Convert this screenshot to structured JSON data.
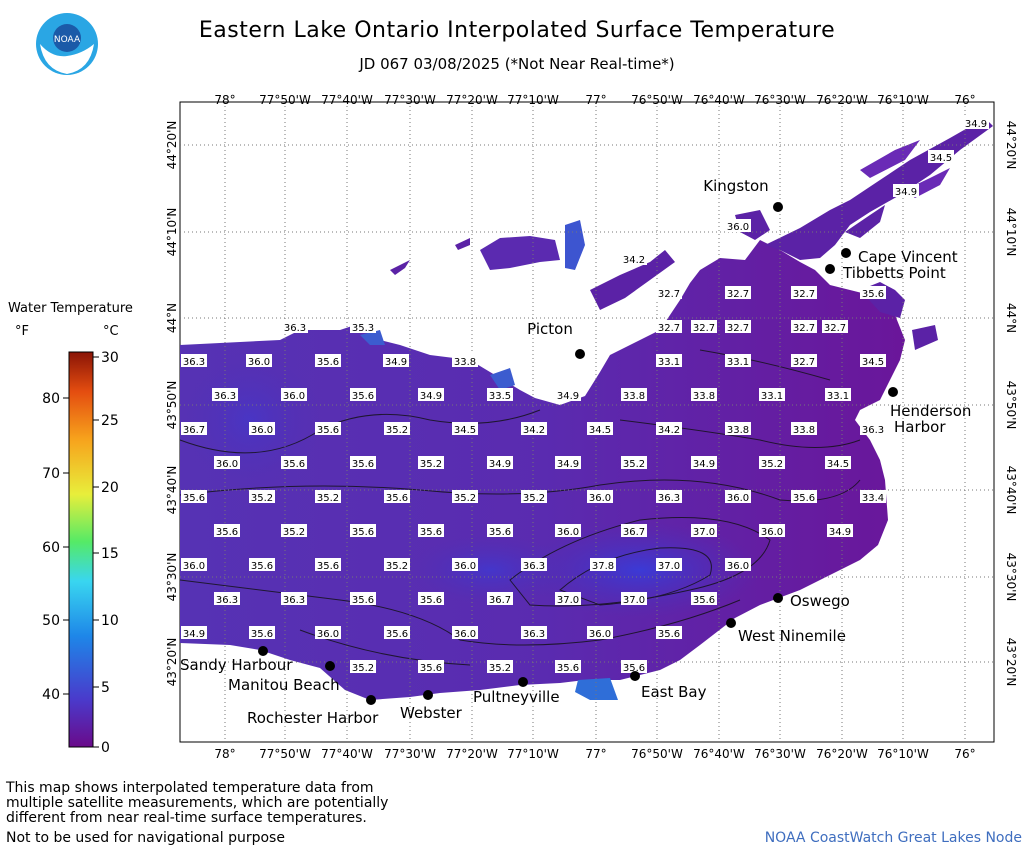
{
  "title": "Eastern Lake Ontario Interpolated Surface Temperature",
  "subtitle": "JD 067 03/08/2025 (*Not Near Real-time*)",
  "logo": {
    "text": "NOAA",
    "icon": "noaa-logo-icon"
  },
  "legend": {
    "title": "Water Temperature",
    "unit_f": "°F",
    "unit_c": "°C",
    "f_ticks": [
      "80",
      "70",
      "60",
      "50",
      "40"
    ],
    "c_ticks": [
      "30",
      "25",
      "20",
      "15",
      "10",
      "5",
      "0"
    ],
    "colors": [
      "#6a0a8a",
      "#4a3acb",
      "#1e86e8",
      "#39d6f0",
      "#55ea66",
      "#e8ee3b",
      "#f7a21c",
      "#e44d10",
      "#8a1406"
    ]
  },
  "axes": {
    "lon_ticks_top": [
      "78°",
      "77°50'W",
      "77°40'W",
      "77°30'W",
      "77°20'W",
      "77°10'W",
      "77°",
      "76°50'W",
      "76°40'W",
      "76°30'W",
      "76°20'W",
      "76°10'W",
      "76°"
    ],
    "lon_ticks_bottom": [
      "78°",
      "77°50'W",
      "77°40'W",
      "77°30'W",
      "77°20'W",
      "77°10'W",
      "77°",
      "76°50'W",
      "76°40'W",
      "76°30'W",
      "76°20'W",
      "76°10'W",
      "76°"
    ],
    "lat_ticks": [
      "44°20'N",
      "44°10'N",
      "44°N",
      "43°50'N",
      "43°40'N",
      "43°30'N",
      "43°20'N"
    ]
  },
  "places": [
    {
      "name": "Kingston"
    },
    {
      "name": "Cape Vincent"
    },
    {
      "name": "Tibbetts Point"
    },
    {
      "name": "Picton"
    },
    {
      "name": "Henderson Harbor"
    },
    {
      "name": "Oswego"
    },
    {
      "name": "West Ninemile"
    },
    {
      "name": "East Bay"
    },
    {
      "name": "Pultneyville"
    },
    {
      "name": "Webster"
    },
    {
      "name": "Rochester Harbor"
    },
    {
      "name": "Manitou Beach"
    },
    {
      "name": "Sandy Harbour"
    }
  ],
  "temperature_labels": [
    "34.9",
    "34.5",
    "34.9",
    "36.0",
    "34.2",
    "32.7",
    "32.7",
    "32.7",
    "32.7",
    "35.6",
    "36.3",
    "35.3",
    "32.7",
    "32.7",
    "32.7",
    "32.7",
    "36.3",
    "36.0",
    "35.6",
    "34.9",
    "33.8",
    "33.1",
    "33.1",
    "32.7",
    "34.5",
    "36.3",
    "36.0",
    "35.6",
    "34.9",
    "33.5",
    "34.9",
    "33.8",
    "33.8",
    "33.1",
    "33.1",
    "36.7",
    "36.0",
    "35.6",
    "35.2",
    "34.5",
    "34.2",
    "34.5",
    "34.2",
    "33.8",
    "33.8",
    "36.3",
    "36.0",
    "35.6",
    "35.6",
    "35.2",
    "34.9",
    "34.9",
    "35.2",
    "34.9",
    "35.2",
    "34.5",
    "35.6",
    "35.2",
    "35.2",
    "35.6",
    "35.2",
    "35.2",
    "36.0",
    "36.3",
    "36.0",
    "35.6",
    "33.4",
    "35.6",
    "35.2",
    "35.6",
    "35.6",
    "35.6",
    "36.0",
    "36.7",
    "37.0",
    "36.0",
    "34.9",
    "36.0",
    "35.6",
    "35.6",
    "35.2",
    "36.0",
    "36.3",
    "37.8",
    "37.0",
    "36.0",
    "36.3",
    "36.3",
    "35.6",
    "35.6",
    "36.7",
    "37.0",
    "37.0",
    "35.6",
    "34.9",
    "35.6",
    "36.0",
    "35.6",
    "36.0",
    "36.3",
    "36.0",
    "35.6",
    "35.2",
    "35.6",
    "35.2",
    "35.6",
    "35.6"
  ],
  "footnote_lines": [
    "This map shows interpolated temperature data from",
    "multiple satellite measurements, which are potentially",
    "different from near real-time surface temperatures."
  ],
  "nav_warning": "Not to be used for navigational purpose",
  "source": "NOAA CoastWatch Great Lakes Node"
}
